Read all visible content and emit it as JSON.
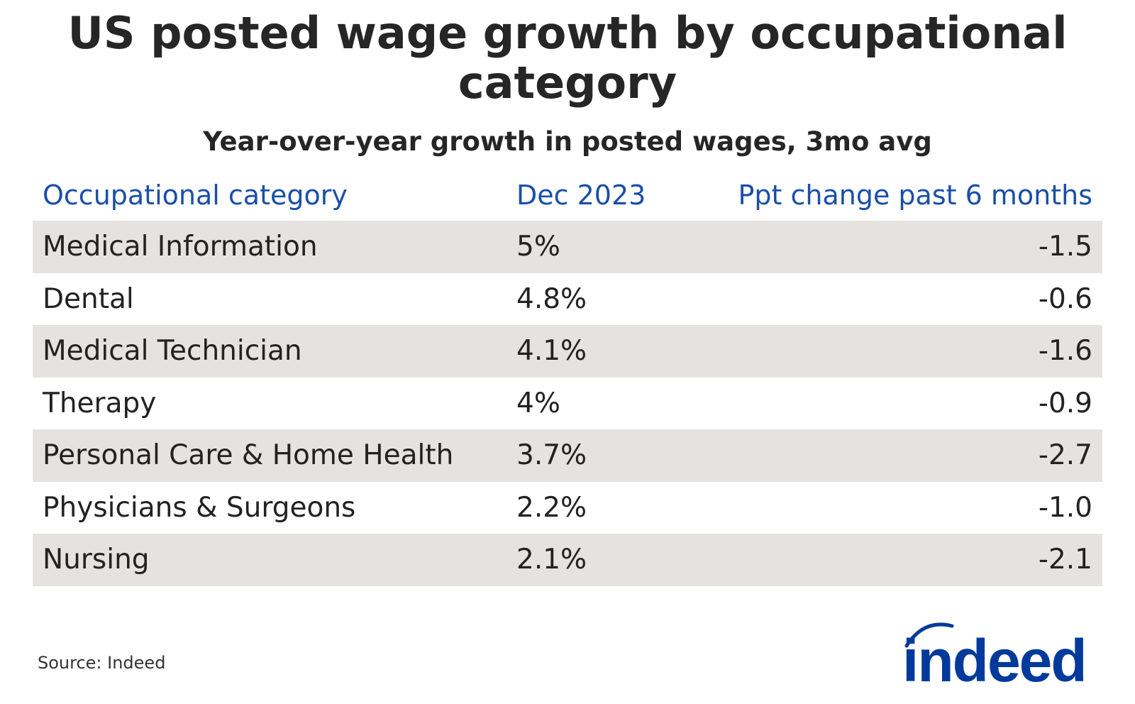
{
  "chart_data": {
    "type": "table",
    "title": "US posted wage growth by occupational category",
    "subtitle": "Year-over-year growth in posted wages, 3mo avg",
    "columns": [
      "Occupational category",
      "Dec 2023",
      "Ppt change past 6 months"
    ],
    "rows": [
      {
        "category": "Medical Information",
        "dec2023": "5%",
        "change": "-1.5"
      },
      {
        "category": "Dental",
        "dec2023": "4.8%",
        "change": "-0.6"
      },
      {
        "category": "Medical Technician",
        "dec2023": "4.1%",
        "change": "-1.6"
      },
      {
        "category": "Therapy",
        "dec2023": "4%",
        "change": "-0.9"
      },
      {
        "category": "Personal Care & Home Health",
        "dec2023": "3.7%",
        "change": "-2.7"
      },
      {
        "category": "Physicians & Surgeons",
        "dec2023": "2.2%",
        "change": "-1.0"
      },
      {
        "category": "Nursing",
        "dec2023": "2.1%",
        "change": "-2.1"
      }
    ],
    "row_shading": "alternating",
    "colors": {
      "header": "#1a4fa8",
      "shade": "#e4e3e1",
      "logo": "#003a9b"
    }
  },
  "source": "Source: Indeed",
  "logo": {
    "text": "indeed"
  }
}
